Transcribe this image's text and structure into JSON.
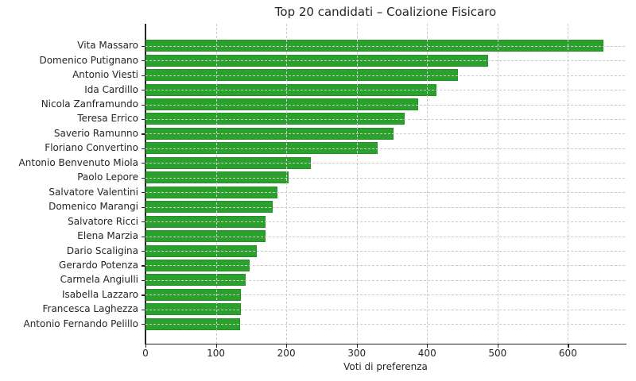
{
  "chart_data": {
    "type": "bar",
    "orientation": "horizontal",
    "title": "Top 20 candidati – Coalizione Fisicaro",
    "xlabel": "Voti di preferenza",
    "ylabel": "",
    "categories": [
      "Vita Massaro",
      "Domenico Putignano",
      "Antonio Viesti",
      "Ida Cardillo",
      "Nicola Zanframundo",
      "Teresa Errico",
      "Saverio Ramunno",
      "Floriano Convertino",
      "Antonio Benvenuto Miola",
      "Paolo Lepore",
      "Salvatore Valentini",
      "Domenico Marangi",
      "Salvatore Ricci",
      "Elena Marzia",
      "Dario Scaligina",
      "Gerardo Potenza",
      "Carmela Angiulli",
      "Isabella Lazzaro",
      "Francesca Laghezza",
      "Antonio Fernando Pelillo"
    ],
    "values": [
      650,
      487,
      444,
      413,
      387,
      368,
      352,
      330,
      235,
      203,
      187,
      181,
      171,
      170,
      158,
      148,
      142,
      136,
      135,
      134
    ],
    "x_ticks": [
      0,
      100,
      200,
      300,
      400,
      500,
      600
    ],
    "xlim": [
      0,
      682
    ],
    "grid": true,
    "legend": null,
    "bar_color": "#2ca02c",
    "bar_edge_color": "#259025",
    "grid_color": "#cccccc",
    "text_color": "#262626",
    "background_color": "#ffffff"
  }
}
